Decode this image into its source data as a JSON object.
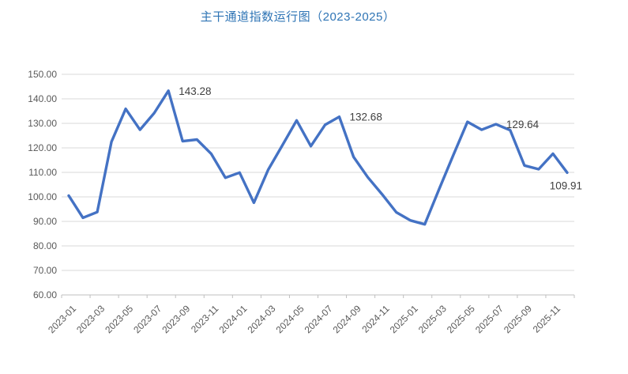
{
  "chart_data": {
    "type": "line",
    "title": "主干通道指数运行图（2023-2025）",
    "x": [
      "2023-01",
      "2023-02",
      "2023-03",
      "2023-04",
      "2023-05",
      "2023-06",
      "2023-07",
      "2023-08",
      "2023-09",
      "2023-10",
      "2023-11",
      "2023-12",
      "2024-01",
      "2024-02",
      "2024-03",
      "2024-04",
      "2024-05",
      "2024-06",
      "2024-07",
      "2024-08",
      "2024-09",
      "2024-10",
      "2024-11",
      "2024-12",
      "2025-01",
      "2025-02",
      "2025-03",
      "2025-04",
      "2025-05",
      "2025-06",
      "2025-07",
      "2025-08",
      "2025-09",
      "2025-10",
      "2025-11",
      "2025-12"
    ],
    "values": [
      100.5,
      91.5,
      93.8,
      122.5,
      135.9,
      127.4,
      134.2,
      143.28,
      122.7,
      123.4,
      117.6,
      107.8,
      109.9,
      97.6,
      111.0,
      121.0,
      131.2,
      120.7,
      129.4,
      132.68,
      116.3,
      108.0,
      101.1,
      93.7,
      90.4,
      88.8,
      103.0,
      117.0,
      130.6,
      127.4,
      129.64,
      127.2,
      112.8,
      111.3,
      117.6,
      109.91
    ],
    "x_tick_labels": [
      "2023-01",
      "2023-03",
      "2023-05",
      "2023-07",
      "2023-09",
      "2023-11",
      "2024-01",
      "2024-03",
      "2024-05",
      "2024-07",
      "2024-09",
      "2024-11",
      "2025-01",
      "2025-03",
      "2025-05",
      "2025-07",
      "2025-09",
      "2025-11"
    ],
    "x_tick_interval_months": 2,
    "ylim": [
      60,
      150
    ],
    "ytick_step": 10,
    "ytick_decimals": 2,
    "grid": "horizontal",
    "legend": "none",
    "annotations": [
      {
        "month": "2023-08",
        "label": "143.28",
        "placement": "right"
      },
      {
        "month": "2024-08",
        "label": "132.68",
        "placement": "right"
      },
      {
        "month": "2025-07",
        "label": "129.64",
        "placement": "right"
      },
      {
        "month": "2025-12",
        "label": "109.91",
        "placement": "below-left"
      }
    ],
    "colors": {
      "line": "#4472C4",
      "title": "#2E74B5",
      "grid": "#D9D9D9",
      "axis": "#BFBFBF",
      "tick_text": "#595959",
      "annotation_text": "#404040"
    }
  }
}
